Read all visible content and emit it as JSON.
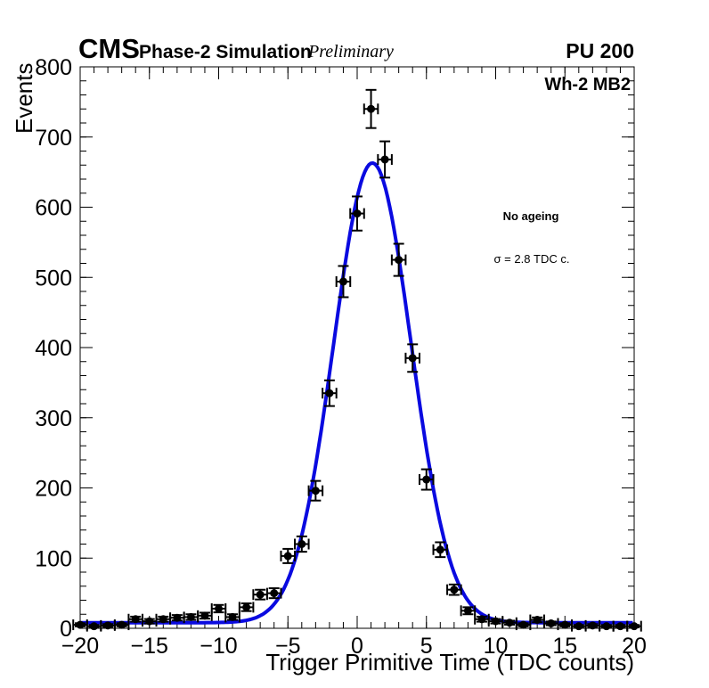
{
  "header": {
    "cms": "CMS",
    "subtitle": "Phase-2 Simulation",
    "preliminary": "Preliminary",
    "pileup": "PU 200"
  },
  "annotations": {
    "chamber": "Wh-2 MB2",
    "ageing": "No ageing",
    "sigma": "σ = 2.8 TDC c."
  },
  "chart_data": {
    "type": "scatter",
    "title": "",
    "xlabel": "Trigger Primitive Time (TDC counts)",
    "ylabel": "Events",
    "xlim": [
      -20,
      20
    ],
    "ylim": [
      0,
      800
    ],
    "grid": false,
    "legend_position": "none",
    "x_major_ticks": [
      -20,
      -15,
      -10,
      -5,
      0,
      5,
      10,
      15,
      20
    ],
    "x_tick_labels": [
      "−20",
      "−15",
      "−10",
      "−5",
      "0",
      "5",
      "10",
      "15",
      "20"
    ],
    "y_major_ticks": [
      0,
      100,
      200,
      300,
      400,
      500,
      600,
      700,
      800
    ],
    "y_tick_labels": [
      "0",
      "100",
      "200",
      "300",
      "400",
      "500",
      "600",
      "700",
      "800"
    ],
    "x_minor_step": 1,
    "y_minor_step": 20,
    "bin_half_width": 0.5,
    "marker_color": "#000000",
    "x": [
      -20,
      -19,
      -18,
      -17,
      -16,
      -15,
      -14,
      -13,
      -12,
      -11,
      -10,
      -9,
      -8,
      -7,
      -6,
      -5,
      -4,
      -3,
      -2,
      -1,
      0,
      1,
      2,
      3,
      4,
      5,
      6,
      7,
      8,
      9,
      10,
      11,
      12,
      13,
      14,
      15,
      16,
      17,
      18,
      19,
      20
    ],
    "values": [
      5,
      3,
      4,
      5,
      13,
      10,
      13,
      15,
      16,
      18,
      28,
      16,
      30,
      48,
      50,
      103,
      120,
      196,
      335,
      494,
      591,
      740,
      668,
      525,
      385,
      212,
      112,
      55,
      25,
      13,
      10,
      8,
      5,
      12,
      7,
      5,
      3,
      4,
      3,
      3,
      3
    ],
    "fit": {
      "model": "gaussian_plus_constant",
      "amplitude": 655,
      "mean": 1.1,
      "sigma": 2.8,
      "baseline": 8,
      "color": "#0a0ae0",
      "line_width": 4
    }
  }
}
